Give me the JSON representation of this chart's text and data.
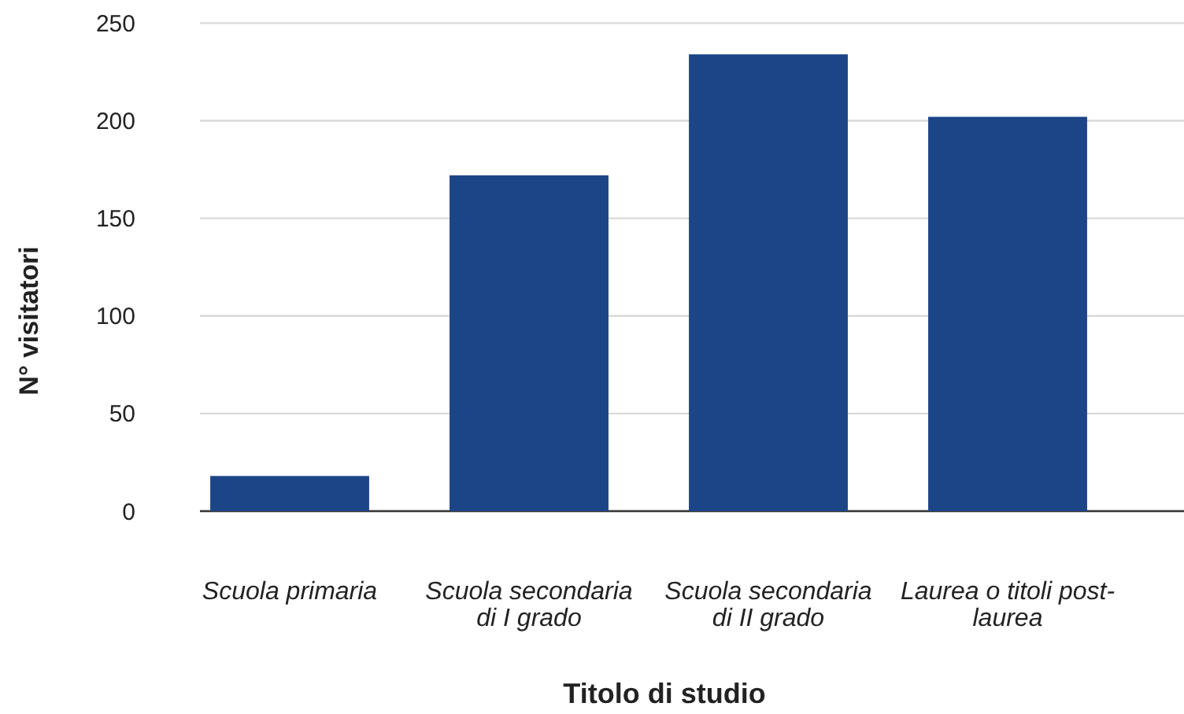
{
  "chart_data": {
    "type": "bar",
    "xlabel": "Titolo di studio",
    "ylabel": "N° visitatori",
    "categories": [
      "Scuola primaria",
      "Scuola secondaria di I grado",
      "Scuola secondaria di II grado",
      "Laurea o titoli post-laurea"
    ],
    "values": [
      18,
      172,
      234,
      202
    ],
    "color": "#1c4587",
    "ylim": [
      0,
      250
    ],
    "yticks": [
      0,
      50,
      100,
      150,
      200,
      250
    ],
    "grid": "y"
  }
}
